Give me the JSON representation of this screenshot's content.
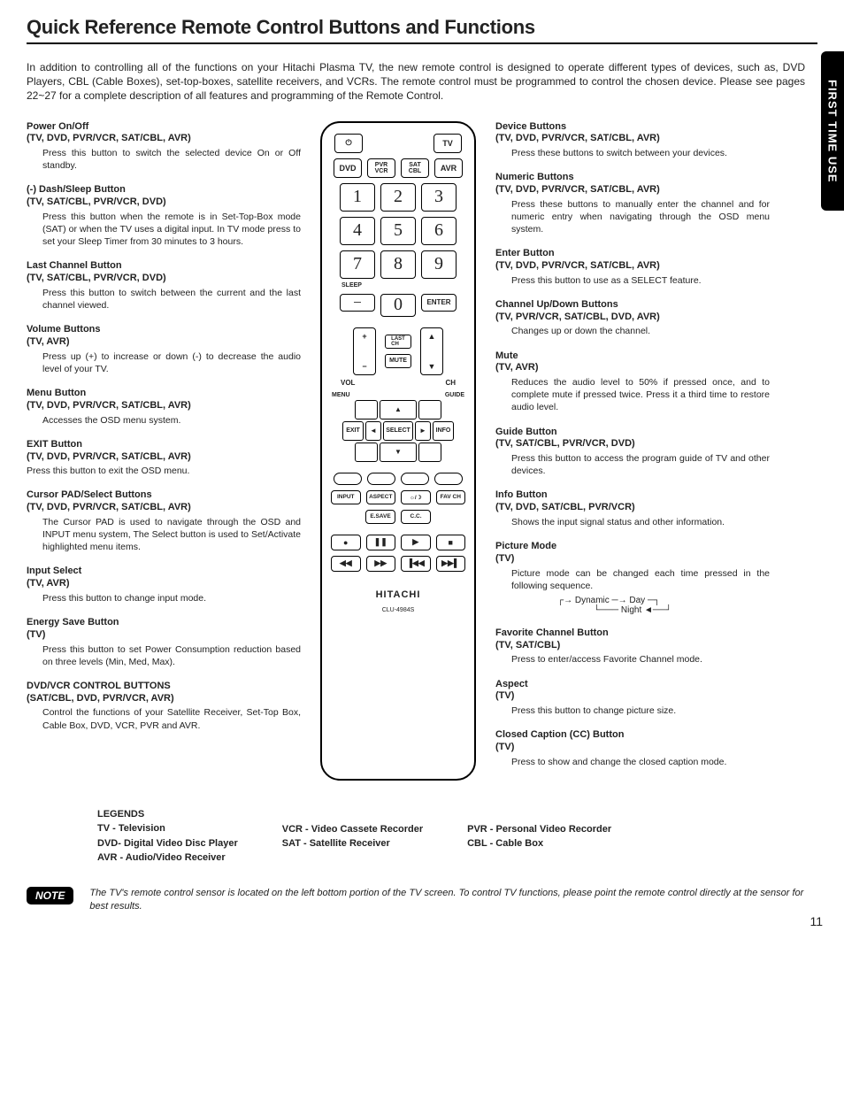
{
  "title": "Quick Reference Remote Control Buttons and Functions",
  "side_tab": "FIRST TIME USE",
  "intro": "In addition to controlling all of the functions on your Hitachi Plasma TV, the new remote control is designed to operate different types of devices, such as, DVD Players, CBL (Cable Boxes), set-top-boxes, satellite receivers, and VCRs. The remote control must be programmed to control the chosen device. Please see pages 22~27 for a complete description of all features and programming of the Remote Control.",
  "left": [
    {
      "t": "Power On/Off",
      "d": "(TV, DVD, PVR/VCR, SAT/CBL, AVR)",
      "b": "Press this button to switch the selected device On or Off standby."
    },
    {
      "t": "(-) Dash/Sleep Button",
      "d": "(TV, SAT/CBL, PVR/VCR, DVD)",
      "b": "Press this button when the remote is in Set-Top-Box mode (SAT) or when the TV uses a digital input. In TV mode press to set your Sleep Timer from 30 minutes to 3 hours."
    },
    {
      "t": "Last Channel Button",
      "d": "(TV, SAT/CBL, PVR/VCR, DVD)",
      "b": "Press this button to switch between the current and the last channel viewed."
    },
    {
      "t": "Volume Buttons",
      "d": "(TV, AVR)",
      "b": "Press up (+) to increase or down (-) to decrease the audio level of your TV."
    },
    {
      "t": "Menu Button",
      "d": "(TV, DVD, PVR/VCR, SAT/CBL, AVR)",
      "b": "Accesses the OSD menu system."
    },
    {
      "t": "EXIT Button",
      "d": "(TV, DVD, PVR/VCR, SAT/CBL, AVR)",
      "b": "Press this button to exit the OSD menu.",
      "noindent": true
    },
    {
      "t": "Cursor PAD/Select Buttons",
      "d": "(TV, DVD, PVR/VCR, SAT/CBL, AVR)",
      "b": "The Cursor PAD is used to navigate through the OSD and INPUT menu system, The Select button is used to Set/Activate highlighted menu items."
    },
    {
      "t": "Input Select",
      "d": "(TV, AVR)",
      "b": "Press this button to change input mode."
    },
    {
      "t": "Energy Save Button",
      "d": "(TV)",
      "b": "Press this button to set Power Consumption reduction based on three levels (Min, Med, Max)."
    },
    {
      "t": "DVD/VCR CONTROL BUTTONS",
      "d": "(SAT/CBL, DVD, PVR/VCR, AVR)",
      "b": "Control the functions of your Satellite Receiver, Set-Top Box, Cable Box, DVD, VCR, PVR and AVR."
    }
  ],
  "right": [
    {
      "t": "Device Buttons",
      "d": "(TV, DVD, PVR/VCR, SAT/CBL, AVR)",
      "b": "Press these buttons to switch between your devices."
    },
    {
      "t": "Numeric Buttons",
      "d": "(TV, DVD, PVR/VCR, SAT/CBL, AVR)",
      "b": "Press these buttons to manually enter the channel and for numeric entry when navigating through the OSD menu system."
    },
    {
      "t": "Enter Button",
      "d": "(TV, DVD, PVR/VCR, SAT/CBL, AVR)",
      "b": "Press this button to use as a SELECT feature."
    },
    {
      "t": "Channel Up/Down Buttons",
      "d": "(TV, PVR/VCR, SAT/CBL, DVD, AVR)",
      "b": "Changes up or down the channel."
    },
    {
      "t": "Mute",
      "d": "(TV, AVR)",
      "b": "Reduces the audio level to 50% if pressed once, and to complete mute if pressed twice. Press it a third time to restore audio level."
    },
    {
      "t": "Guide Button",
      "d": "(TV, SAT/CBL, PVR/VCR, DVD)",
      "b": "Press this button to access the program guide of TV and other devices."
    },
    {
      "t": "Info Button",
      "d": "(TV, DVD, SAT/CBL, PVR/VCR)",
      "b": "Shows the input signal status and other information."
    },
    {
      "t": "Picture Mode",
      "d": "(TV)",
      "b": "Picture mode can be changed each time pressed in the following sequence.",
      "seq": true
    },
    {
      "t": "Favorite Channel Button",
      "d": "(TV, SAT/CBL)",
      "b": "Press to enter/access Favorite Channel mode."
    },
    {
      "t": "Aspect",
      "d": "(TV)",
      "b": "Press this button to change picture size."
    },
    {
      "t": "Closed Caption (CC) Button",
      "d": "(TV)",
      "b": "Press to show and change the closed caption mode."
    }
  ],
  "legends": {
    "title": "LEGENDS",
    "c1": [
      "TV - Television",
      "DVD- Digital Video Disc Player",
      "AVR - Audio/Video Receiver"
    ],
    "c2": [
      "VCR - Video Cassete Recorder",
      "SAT - Satellite Receiver"
    ],
    "c3": [
      "PVR - Personal Video Recorder",
      "CBL - Cable Box"
    ]
  },
  "note_label": "NOTE",
  "note_text": "The TV's remote control sensor is located on the left bottom portion of the TV screen. To control TV functions, please point the remote control directly at the sensor for best results.",
  "page_number": "11",
  "remote": {
    "tv": "TV",
    "dvd": "DVD",
    "pvr": "PVR VCR",
    "sat": "SAT CBL",
    "avr": "AVR",
    "sleep": "SLEEP",
    "enter": "ENTER",
    "last": "LAST CH",
    "vol": "VOL",
    "ch": "CH",
    "mute": "MUTE",
    "menu": "MENU",
    "guide": "GUIDE",
    "exit": "EXIT",
    "select": "SELECT",
    "info": "INFO",
    "input": "INPUT",
    "aspect": "ASPECT",
    "pmode": "☼/☽",
    "fav": "FAV CH",
    "esave": "E.SAVE",
    "cc": "C.C.",
    "brand": "HITACHI",
    "model": "CLU-4984S"
  },
  "seq": {
    "a": "Dynamic",
    "b": "Day",
    "c": "Night"
  }
}
